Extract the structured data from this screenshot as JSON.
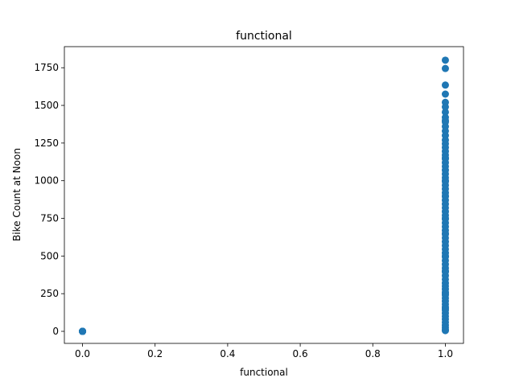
{
  "chart_data": {
    "type": "scatter",
    "title": "functional",
    "xlabel": "functional",
    "ylabel": "Bike Count at Noon",
    "xlim": [
      -0.05,
      1.05
    ],
    "ylim": [
      -80,
      1890
    ],
    "xticks": [
      0.0,
      0.2,
      0.4,
      0.6,
      0.8,
      1.0
    ],
    "xtick_labels": [
      "0.0",
      "0.2",
      "0.4",
      "0.6",
      "0.8",
      "1.0"
    ],
    "yticks": [
      0,
      250,
      500,
      750,
      1000,
      1250,
      1500,
      1750
    ],
    "ytick_labels": [
      "0",
      "250",
      "500",
      "750",
      "1000",
      "1250",
      "1500",
      "1750"
    ],
    "grid": false,
    "marker_color": "#1f77b4",
    "series": [
      {
        "x": [
          0,
          0,
          0,
          0,
          0,
          0,
          0,
          0,
          0,
          0,
          1,
          1,
          1,
          1,
          1,
          1,
          1,
          1,
          1,
          1,
          1,
          1,
          1,
          1,
          1,
          1,
          1,
          1,
          1,
          1,
          1,
          1,
          1,
          1,
          1,
          1,
          1,
          1,
          1,
          1,
          1,
          1,
          1,
          1,
          1,
          1,
          1,
          1,
          1,
          1,
          1,
          1,
          1,
          1,
          1,
          1,
          1,
          1,
          1,
          1,
          1,
          1,
          1,
          1,
          1,
          1,
          1,
          1,
          1,
          1,
          1,
          1,
          1,
          1,
          1,
          1,
          1,
          1,
          1,
          1,
          1,
          1,
          1,
          1,
          1,
          1,
          1,
          1
        ],
        "y": [
          0,
          0,
          0,
          0,
          0,
          0,
          0,
          0,
          0,
          0,
          1800,
          1745,
          1635,
          1575,
          1520,
          1490,
          1455,
          1420,
          1390,
          1360,
          1330,
          1300,
          1270,
          1245,
          1220,
          1195,
          1170,
          1145,
          1120,
          1095,
          1070,
          1045,
          1020,
          995,
          970,
          945,
          920,
          895,
          870,
          845,
          820,
          795,
          770,
          745,
          720,
          695,
          670,
          645,
          620,
          595,
          570,
          545,
          520,
          495,
          470,
          445,
          420,
          395,
          370,
          345,
          320,
          300,
          280,
          260,
          240,
          220,
          200,
          180,
          160,
          140,
          120,
          100,
          80,
          60,
          40,
          25,
          10,
          5,
          1400,
          1150,
          900,
          650,
          400,
          150,
          1000,
          750,
          500,
          250
        ]
      }
    ]
  }
}
